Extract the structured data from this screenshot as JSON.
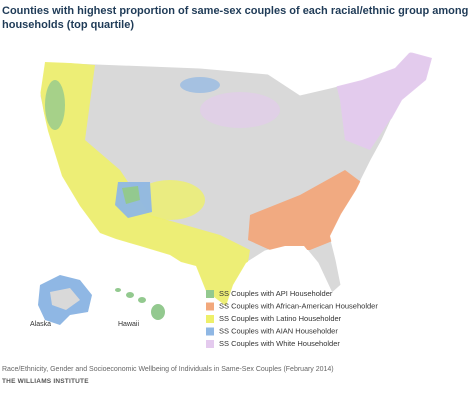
{
  "header": {
    "title": "Counties with highest proportion of same-sex couples of each racial/ethnic group among households (top quartile)"
  },
  "map": {
    "labels": [
      "Alaska",
      "Hawaii"
    ]
  },
  "legend": {
    "items": [
      {
        "label": "SS Couples with API Householder",
        "color": "#93c98f"
      },
      {
        "label": "SS Couples with African-American Householder",
        "color": "#f2a87c"
      },
      {
        "label": "SS Couples with Latino Householder",
        "color": "#eef06a"
      },
      {
        "label": "SS Couples with AIAN Householder",
        "color": "#8fb7e4"
      },
      {
        "label": "SS Couples with White Householder",
        "color": "#e4caee"
      }
    ]
  },
  "footer": {
    "source": "Race/Ethnicity, Gender and Socioeconomic Wellbeing of Individuals in Same-Sex Couples (February 2014)",
    "institute": "THE WILLIAMS INSTITUTE"
  }
}
